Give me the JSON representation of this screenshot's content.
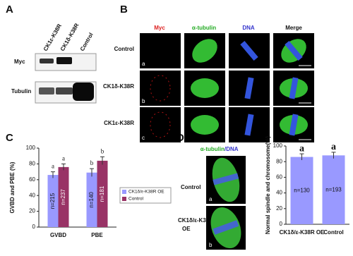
{
  "panel_labels": [
    "A",
    "B",
    "C",
    "D",
    "E"
  ],
  "blot": {
    "lanes": [
      "CK1ε-K38R",
      "CK1δ-K38R",
      "Control"
    ],
    "rows": [
      "Myc",
      "Tubulin"
    ]
  },
  "microscopy": {
    "columns": [
      "Myc",
      "α-tubulin",
      "DNA",
      "Merge"
    ],
    "rows": [
      "Control",
      "CK1δ-K38R",
      "CK1ε-K38R"
    ],
    "sublabels": [
      "a",
      "b",
      "c"
    ]
  },
  "panel_d": {
    "header": [
      "α-tubulin",
      "/DNA"
    ],
    "rows": [
      [
        "Control"
      ],
      [
        "CK1δ/ε-K38R",
        "OE"
      ]
    ],
    "sublabels": [
      "a",
      "b"
    ]
  },
  "chart_data": [
    {
      "type": "bar",
      "ylabel": "GVBD and PBE (%)",
      "categories": [
        "GVBD",
        "PBE"
      ],
      "series": [
        {
          "name": "CK1δ/ε-K38R OE",
          "color": "#9999ff",
          "values": [
            66,
            69
          ],
          "errors": [
            4,
            5
          ],
          "letters": [
            "a",
            "b"
          ],
          "sample_sizes": [
            "n=215",
            "n=140"
          ]
        },
        {
          "name": "Control",
          "color": "#993366",
          "values": [
            76,
            84
          ],
          "errors": [
            4,
            5
          ],
          "letters": [
            "a",
            "b"
          ],
          "sample_sizes": [
            "n=237",
            "n=181"
          ]
        }
      ],
      "ylim": [
        0,
        100
      ],
      "yticks": [
        0,
        20,
        40,
        60,
        80,
        100
      ]
    },
    {
      "type": "bar",
      "ylabel": "Normal spindle  and chromosome(%)",
      "categories": [
        "CK1δ/ε-K38R OE",
        "Control"
      ],
      "series": [
        {
          "color": "#9999ff",
          "values": [
            86,
            88
          ],
          "errors": [
            4,
            4
          ],
          "letters": [
            "a",
            "a"
          ],
          "sample_sizes": [
            "n=130",
            "n=193"
          ]
        }
      ],
      "ylim": [
        0,
        100
      ],
      "yticks": [
        0,
        20,
        40,
        60,
        80,
        100
      ]
    }
  ]
}
